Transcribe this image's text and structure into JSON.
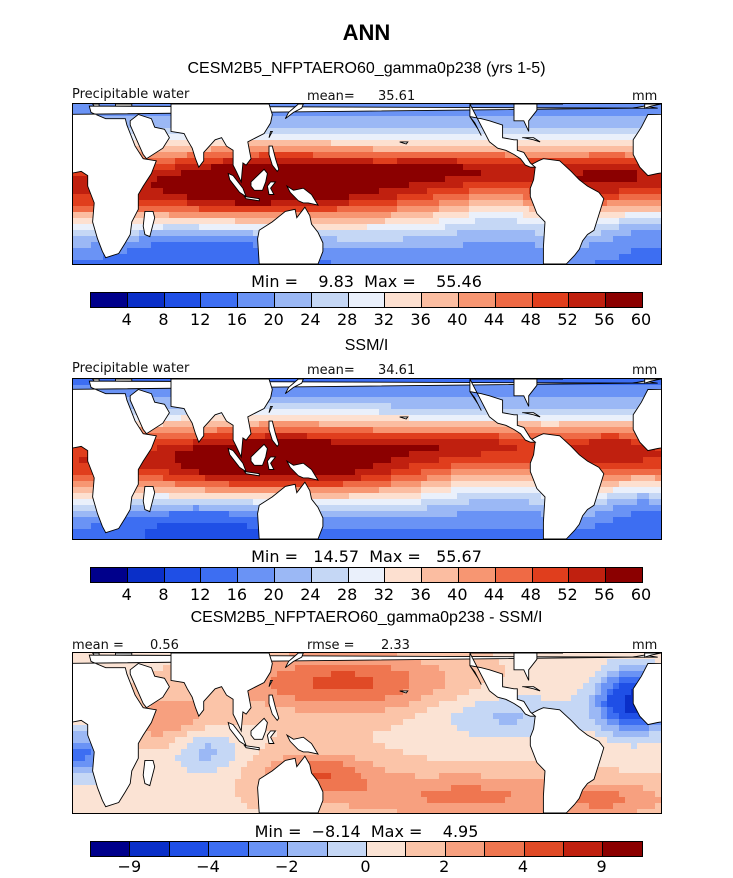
{
  "figure_title": "ANN",
  "land_color": "#ffffff",
  "chart_data": [
    {
      "type": "heatmap",
      "title": "CESM2B5_NFPTAERO60_gamma0p238 (yrs 1-5)",
      "variable": "Precipitable water",
      "stat_label": "mean=",
      "stat_value": "35.61",
      "units": "mm",
      "min_max_text": "Min =    9.83  Max =    55.46",
      "min": 9.83,
      "max": 55.46,
      "colorbar": {
        "colors": [
          "#00008b",
          "#0a2fc8",
          "#1f4fe6",
          "#3d6ef2",
          "#6a93f5",
          "#9bb8f5",
          "#c5d7f5",
          "#eaf0fb",
          "#fde0d0",
          "#fbbda1",
          "#f79672",
          "#ef6a45",
          "#e03e1d",
          "#c0200f",
          "#8b0000"
        ],
        "tick_labels": [
          "4",
          "8",
          "12",
          "16",
          "20",
          "24",
          "28",
          "32",
          "36",
          "40",
          "44",
          "48",
          "52",
          "56",
          "60"
        ]
      },
      "field_range": [
        9.83,
        55.46
      ],
      "field_kind": "pw_model"
    },
    {
      "type": "heatmap",
      "title": "SSM/I",
      "variable": "Precipitable water",
      "stat_label": "mean=",
      "stat_value": "34.61",
      "units": "mm",
      "min_max_text": "Min =   14.57  Max =   55.67",
      "min": 14.57,
      "max": 55.67,
      "colorbar": {
        "colors": [
          "#00008b",
          "#0a2fc8",
          "#1f4fe6",
          "#3d6ef2",
          "#6a93f5",
          "#9bb8f5",
          "#c5d7f5",
          "#eaf0fb",
          "#fde0d0",
          "#fbbda1",
          "#f79672",
          "#ef6a45",
          "#e03e1d",
          "#c0200f",
          "#8b0000"
        ],
        "tick_labels": [
          "4",
          "8",
          "12",
          "16",
          "20",
          "24",
          "28",
          "32",
          "36",
          "40",
          "44",
          "48",
          "52",
          "56",
          "60"
        ]
      },
      "field_range": [
        14.57,
        55.67
      ],
      "field_kind": "pw_obs"
    },
    {
      "type": "heatmap",
      "title": "CESM2B5_NFPTAERO60_gamma0p238 - SSM/I",
      "stat_label": "mean =",
      "stat_value": "0.56",
      "stat2_label": "rmse =",
      "stat2_value": "2.33",
      "units": "mm",
      "min_max_text": "Min =  −8.14  Max =    4.95",
      "min": -8.14,
      "max": 4.95,
      "colorbar": {
        "colors": [
          "#00008b",
          "#0a2fc8",
          "#1f4fe6",
          "#3d6ef2",
          "#6a93f5",
          "#9bb8f5",
          "#c5d7f5",
          "#fbe3d4",
          "#fbc4a8",
          "#f7a07f",
          "#ef7650",
          "#e04a26",
          "#c0200f",
          "#8b0000"
        ],
        "tick_labels": [
          "−9",
          "−4",
          "−2",
          "0",
          "2",
          "4",
          "9"
        ],
        "tick_boundaries": [
          1,
          3,
          5,
          7,
          9,
          11,
          13
        ]
      },
      "field_range": [
        -8.14,
        4.95
      ],
      "field_kind": "diff"
    }
  ]
}
